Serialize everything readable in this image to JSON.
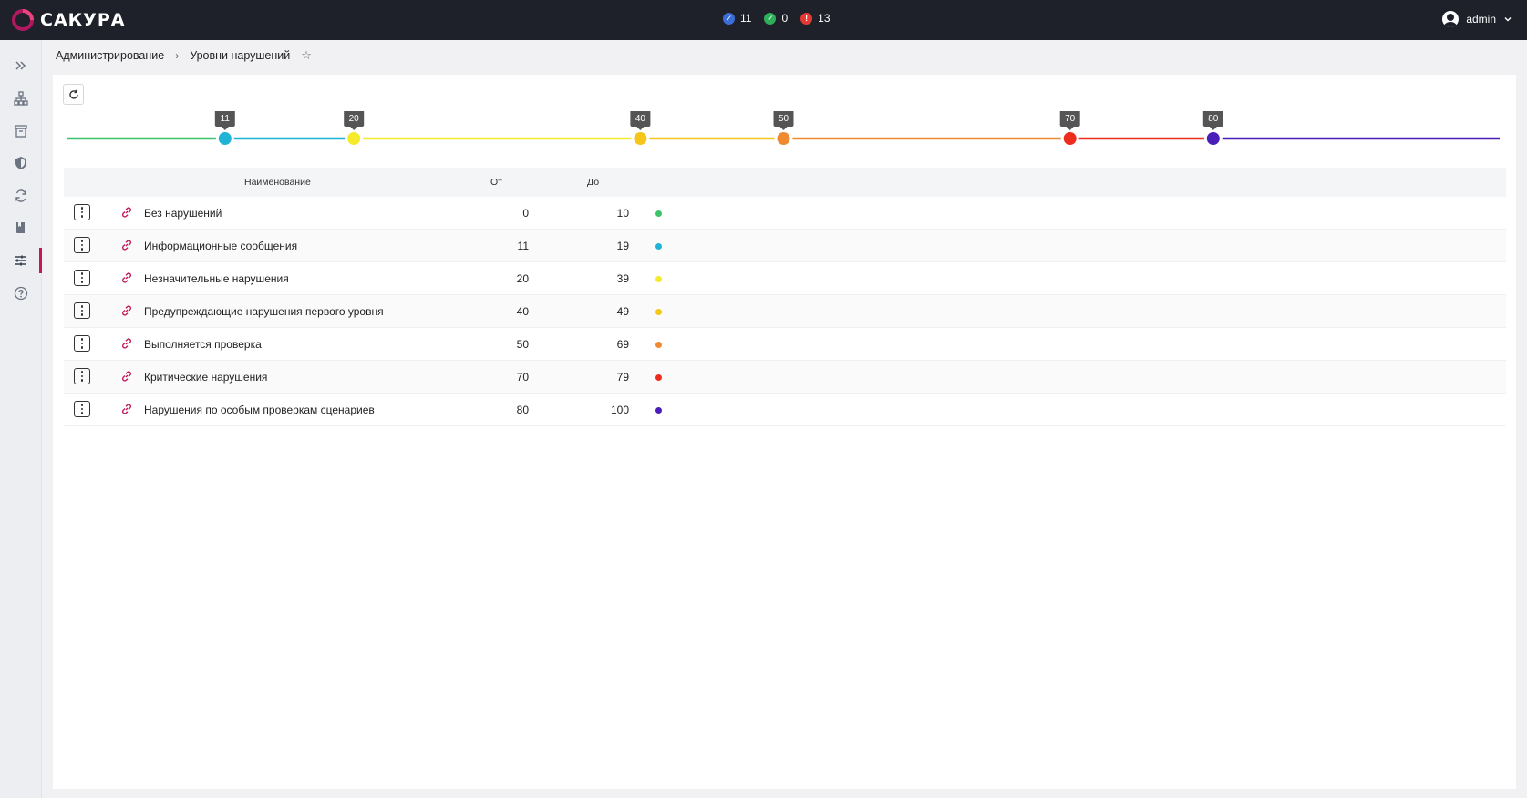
{
  "app": {
    "brand": "САКУРА"
  },
  "topbar": {
    "counters": [
      {
        "value": "11",
        "color": "#3b6fd8",
        "icon": "check-badge-icon",
        "glyph": "✓"
      },
      {
        "value": "0",
        "color": "#2fae5a",
        "icon": "check-circle-icon",
        "glyph": "✓"
      },
      {
        "value": "13",
        "color": "#e53935",
        "icon": "alert-circle-icon",
        "glyph": "!"
      }
    ],
    "user": "admin"
  },
  "sidebar": {
    "items": [
      {
        "icon": "expand-icon"
      },
      {
        "icon": "hierarchy-icon"
      },
      {
        "icon": "archive-icon"
      },
      {
        "icon": "shield-icon"
      },
      {
        "icon": "sync-icon"
      },
      {
        "icon": "book-icon"
      },
      {
        "icon": "sliders-icon",
        "active": true
      },
      {
        "icon": "help-icon"
      }
    ]
  },
  "breadcrumb": {
    "parent": "Администрирование",
    "separator": "›",
    "current": "Уровни нарушений",
    "star": "☆"
  },
  "scale": {
    "min": 0,
    "max": 100,
    "markers": [
      {
        "value": 11,
        "label": "11",
        "color": "#1fb4d6"
      },
      {
        "value": 20,
        "label": "20",
        "color": "#f5eb2b"
      },
      {
        "value": 40,
        "label": "40",
        "color": "#f5c518"
      },
      {
        "value": 50,
        "label": "50",
        "color": "#ef8a33"
      },
      {
        "value": 70,
        "label": "70",
        "color": "#ee2c1e"
      },
      {
        "value": 80,
        "label": "80",
        "color": "#4a1eb8"
      }
    ],
    "segments": [
      {
        "from": 0,
        "to": 11,
        "color": "#3dc46a"
      },
      {
        "from": 11,
        "to": 20,
        "color": "#1fb4d6"
      },
      {
        "from": 20,
        "to": 40,
        "color": "#f5eb2b"
      },
      {
        "from": 40,
        "to": 50,
        "color": "#f5c518"
      },
      {
        "from": 50,
        "to": 70,
        "color": "#ef8a33"
      },
      {
        "from": 70,
        "to": 80,
        "color": "#ee2c1e"
      },
      {
        "from": 80,
        "to": 100,
        "color": "#4a1eb8"
      }
    ]
  },
  "table": {
    "headers": {
      "name": "Наименование",
      "from": "От",
      "to": "До"
    },
    "rows": [
      {
        "name": "Без нарушений",
        "from": "0",
        "to": "10",
        "color": "#3dc46a"
      },
      {
        "name": "Информационные сообщения",
        "from": "11",
        "to": "19",
        "color": "#1fb4d6"
      },
      {
        "name": "Незначительные нарушения",
        "from": "20",
        "to": "39",
        "color": "#f5eb2b"
      },
      {
        "name": "Предупреждающие нарушения первого уровня",
        "from": "40",
        "to": "49",
        "color": "#f5c518"
      },
      {
        "name": "Выполняется проверка",
        "from": "50",
        "to": "69",
        "color": "#ef8a33"
      },
      {
        "name": "Критические нарушения",
        "from": "70",
        "to": "79",
        "color": "#ee2c1e"
      },
      {
        "name": "Нарушения по особым проверкам сценариев",
        "from": "80",
        "to": "100",
        "color": "#4a1eb8"
      }
    ]
  }
}
